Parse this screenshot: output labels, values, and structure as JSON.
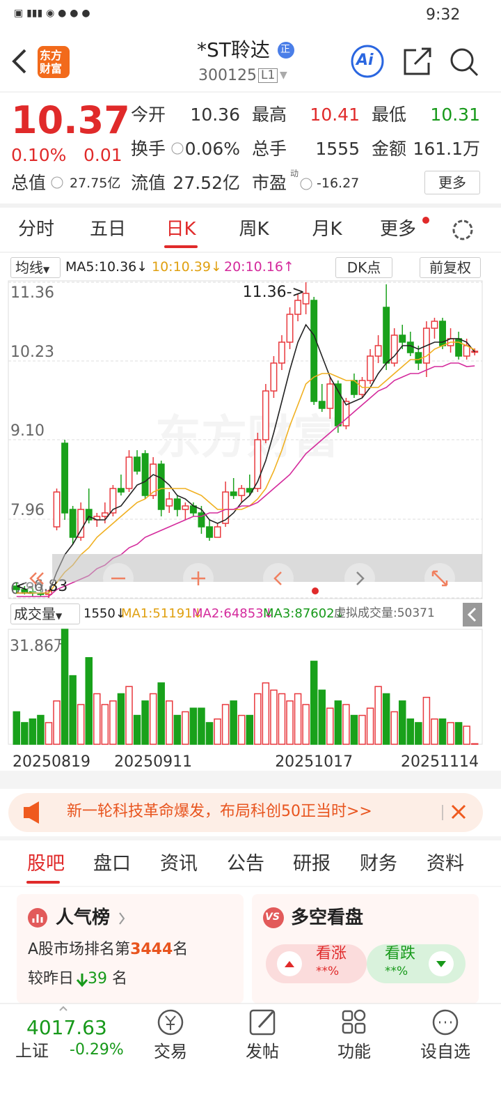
{
  "status_bar": {
    "time": "9:32"
  },
  "header": {
    "logo": [
      "东方",
      "财富"
    ],
    "name": "*ST聆达",
    "badge": "正",
    "code": "300125",
    "level": "L1",
    "ai": "Ai"
  },
  "quote": {
    "price": "10.37",
    "change_pct": "0.10%",
    "change": "0.01",
    "fields": [
      {
        "label": "今开",
        "value": "10.36"
      },
      {
        "label": "最高",
        "value": "10.41"
      },
      {
        "label": "最低",
        "value": "10.31"
      },
      {
        "label": "换手",
        "value": "0.06%"
      },
      {
        "label": "总手",
        "value": "1555"
      },
      {
        "label": "金额",
        "value": "161.1万"
      },
      {
        "label": "总值",
        "value": "27.75亿"
      },
      {
        "label": "流值",
        "value": "27.52亿"
      },
      {
        "label": "市盈",
        "value": "-16.27"
      }
    ],
    "pe_sup": "动",
    "more": "更多"
  },
  "tabs": {
    "items": [
      "分时",
      "五日",
      "日K",
      "周K",
      "月K",
      "更多"
    ],
    "active": 2
  },
  "ma_bar": {
    "selector": "均线",
    "ma5": "MA5:10.36↓",
    "ma10": "10:10.39↓",
    "ma20": "20:10.16↑",
    "dk": "DK点",
    "adjust": "前复权"
  },
  "volume_bar": {
    "selector": "成交量",
    "vol": "1550↓",
    "ma1": "MA1:51191↓",
    "ma2": "MA2:64853↓",
    "ma3": "MA3:87602↓",
    "virtual": "虚拟成交量:50371"
  },
  "chart_data": [
    {
      "type": "candlestick",
      "watermark": "东方财富",
      "annotations": {
        "high": "11.36->",
        "low": "<-6.83"
      },
      "ylim": [
        6.83,
        11.36
      ],
      "yticks": [
        11.36,
        10.23,
        {
          "value": 9.1,
          "label": "9.10"
        },
        7.96,
        6.83
      ],
      "up_color": "#e8383d",
      "down_color": "#19a11b",
      "open": [
        7.0,
        6.95,
        6.92,
        6.9,
        6.88,
        7.85,
        9.05,
        8.1,
        7.7,
        8.1,
        7.95,
        8.0,
        8.05,
        8.4,
        8.4,
        8.85,
        8.9,
        8.3,
        8.75,
        8.15,
        8.25,
        8.1,
        8.15,
        8.05,
        7.85,
        7.7,
        7.9,
        8.35,
        8.3,
        8.4,
        8.4,
        9.1,
        9.8,
        10.2,
        10.5,
        10.9,
        11.05,
        11.1,
        9.65,
        9.55,
        9.9,
        9.3,
        9.95,
        9.75,
        9.95,
        10.3,
        11.0,
        10.2,
        10.6,
        10.5,
        10.35,
        10.2,
        10.7,
        10.8,
        10.45,
        10.55,
        10.3,
        10.36
      ],
      "high": [
        7.05,
        7.0,
        6.98,
        6.95,
        6.95,
        8.4,
        9.1,
        8.15,
        8.2,
        8.4,
        8.05,
        8.2,
        8.45,
        8.6,
        8.95,
        8.95,
        8.95,
        8.85,
        8.8,
        8.35,
        8.3,
        8.2,
        8.2,
        8.15,
        7.95,
        7.9,
        8.5,
        8.55,
        8.45,
        8.6,
        9.2,
        9.9,
        10.3,
        10.6,
        11.0,
        11.2,
        11.36,
        11.15,
        9.9,
        10.0,
        9.95,
        9.7,
        10.05,
        10.0,
        10.4,
        10.6,
        11.33,
        10.7,
        10.75,
        10.65,
        10.45,
        10.8,
        10.85,
        10.85,
        10.7,
        10.65,
        10.55,
        10.41
      ],
      "low": [
        6.9,
        6.88,
        6.85,
        6.85,
        6.83,
        7.8,
        7.95,
        7.6,
        7.65,
        7.9,
        7.85,
        7.9,
        8.0,
        8.3,
        8.35,
        8.6,
        8.25,
        8.25,
        8.0,
        8.05,
        8.0,
        7.95,
        8.0,
        7.75,
        7.65,
        7.7,
        7.85,
        8.25,
        8.2,
        8.3,
        8.35,
        9.05,
        9.7,
        10.1,
        10.4,
        10.8,
        10.9,
        9.6,
        9.5,
        9.4,
        9.2,
        9.25,
        9.7,
        9.7,
        9.9,
        10.2,
        10.1,
        10.15,
        10.4,
        10.3,
        10.1,
        10.0,
        10.55,
        10.4,
        10.35,
        10.25,
        10.25,
        10.31
      ],
      "close": [
        6.95,
        6.92,
        6.9,
        6.88,
        6.93,
        8.35,
        8.05,
        7.7,
        8.1,
        7.95,
        8.0,
        8.05,
        8.4,
        8.35,
        8.85,
        8.65,
        8.3,
        8.75,
        8.1,
        8.25,
        8.1,
        8.15,
        8.05,
        7.85,
        7.7,
        7.85,
        8.35,
        8.3,
        8.4,
        8.35,
        9.1,
        9.8,
        10.2,
        10.5,
        10.9,
        11.1,
        11.2,
        9.65,
        9.55,
        9.9,
        9.3,
        9.65,
        9.75,
        9.95,
        10.3,
        10.45,
        10.2,
        10.6,
        10.5,
        10.35,
        10.2,
        10.7,
        10.8,
        10.45,
        10.55,
        10.3,
        10.45,
        10.37
      ],
      "lines": [
        {
          "color": "#222222",
          "values": [
            6.9,
            6.9,
            6.9,
            6.9,
            6.9,
            7.2,
            7.45,
            7.6,
            7.8,
            8.0,
            7.95,
            7.95,
            8.1,
            8.15,
            8.3,
            8.45,
            8.5,
            8.6,
            8.55,
            8.45,
            8.3,
            8.25,
            8.15,
            8.1,
            7.95,
            7.9,
            7.95,
            8.05,
            8.2,
            8.3,
            8.5,
            8.8,
            9.2,
            9.65,
            10.1,
            10.5,
            10.75,
            10.6,
            10.3,
            10.0,
            9.8,
            9.6,
            9.65,
            9.7,
            9.85,
            10.05,
            10.2,
            10.3,
            10.45,
            10.45,
            10.4,
            10.45,
            10.5,
            10.5,
            10.55,
            10.55,
            10.5,
            10.36
          ]
        },
        {
          "color": "#f0b020",
          "values": [
            6.9,
            6.9,
            6.9,
            6.9,
            6.9,
            7.05,
            7.2,
            7.3,
            7.45,
            7.55,
            7.7,
            7.8,
            7.9,
            8.0,
            8.1,
            8.2,
            8.25,
            8.35,
            8.4,
            8.4,
            8.4,
            8.4,
            8.35,
            8.3,
            8.2,
            8.1,
            8.1,
            8.1,
            8.1,
            8.15,
            8.25,
            8.4,
            8.65,
            8.95,
            9.3,
            9.6,
            9.9,
            10.0,
            10.05,
            10.05,
            10.0,
            9.95,
            9.95,
            9.85,
            9.85,
            9.85,
            9.95,
            10.05,
            10.15,
            10.25,
            10.25,
            10.3,
            10.4,
            10.45,
            10.5,
            10.5,
            10.45,
            10.39
          ]
        },
        {
          "color": "#d42a9c",
          "values": [
            6.85,
            6.85,
            6.85,
            6.85,
            6.85,
            6.95,
            7.0,
            7.05,
            7.1,
            7.15,
            7.25,
            7.3,
            7.4,
            7.45,
            7.55,
            7.6,
            7.7,
            7.75,
            7.8,
            7.85,
            7.9,
            7.95,
            8.0,
            8.0,
            8.05,
            8.05,
            8.1,
            8.1,
            8.15,
            8.15,
            8.2,
            8.3,
            8.4,
            8.5,
            8.6,
            8.75,
            8.9,
            9.0,
            9.1,
            9.2,
            9.3,
            9.4,
            9.5,
            9.6,
            9.7,
            9.8,
            9.85,
            9.95,
            10.0,
            10.05,
            10.05,
            10.1,
            10.15,
            10.15,
            10.2,
            10.2,
            10.15,
            10.16
          ]
        }
      ]
    },
    {
      "type": "bar",
      "categories": [
        "20250819",
        null,
        null,
        null,
        null,
        null,
        null,
        null,
        null,
        null,
        null,
        null,
        null,
        null,
        null,
        null,
        null,
        "20250911",
        null,
        null,
        null,
        null,
        null,
        null,
        null,
        null,
        null,
        null,
        null,
        null,
        null,
        null,
        null,
        null,
        null,
        null,
        null,
        "20251017",
        null,
        null,
        null,
        null,
        null,
        null,
        null,
        null,
        null,
        null,
        null,
        null,
        null,
        null,
        null,
        null,
        null,
        null,
        null,
        "20251114"
      ],
      "values": [
        9,
        6,
        7,
        8,
        6,
        12,
        31.86,
        19,
        11,
        24,
        14,
        11,
        12,
        14,
        16,
        8,
        12,
        14,
        17,
        12,
        8,
        9,
        10,
        10,
        6,
        7,
        11,
        12,
        8,
        8,
        14,
        17,
        15,
        14,
        12,
        14,
        11,
        23,
        15,
        10,
        12,
        11,
        8,
        8,
        10,
        16,
        14,
        9,
        12,
        7,
        6,
        13,
        7,
        7,
        6,
        6,
        5,
        0.155
      ],
      "ylim": [
        0,
        31.86
      ],
      "yticks": [
        {
          "value": 31.86,
          "label": "31.86万"
        }
      ]
    }
  ],
  "banner": "新一轮科技革命爆发，布局科创50正当时>>",
  "content_tabs": {
    "items": [
      "股吧",
      "盘口",
      "资讯",
      "公告",
      "研报",
      "财务",
      "资料"
    ],
    "active": 0
  },
  "popularity": {
    "title": "人气榜",
    "rank_prefix": "A股市场排名第",
    "rank": "3444",
    "rank_suffix": "名",
    "change_prefix": "较昨日",
    "change": "39",
    "change_suffix": "名"
  },
  "sentiment": {
    "badge": "VS",
    "title": "多空看盘",
    "up_label": "看涨",
    "up_value": "**%",
    "down_label": "看跌",
    "down_value": "**%"
  },
  "footer": {
    "index_value": "4017.63",
    "index_name": "上证",
    "index_change": "-0.29%",
    "nav": [
      "交易",
      "发帖",
      "功能",
      "设自选"
    ]
  }
}
